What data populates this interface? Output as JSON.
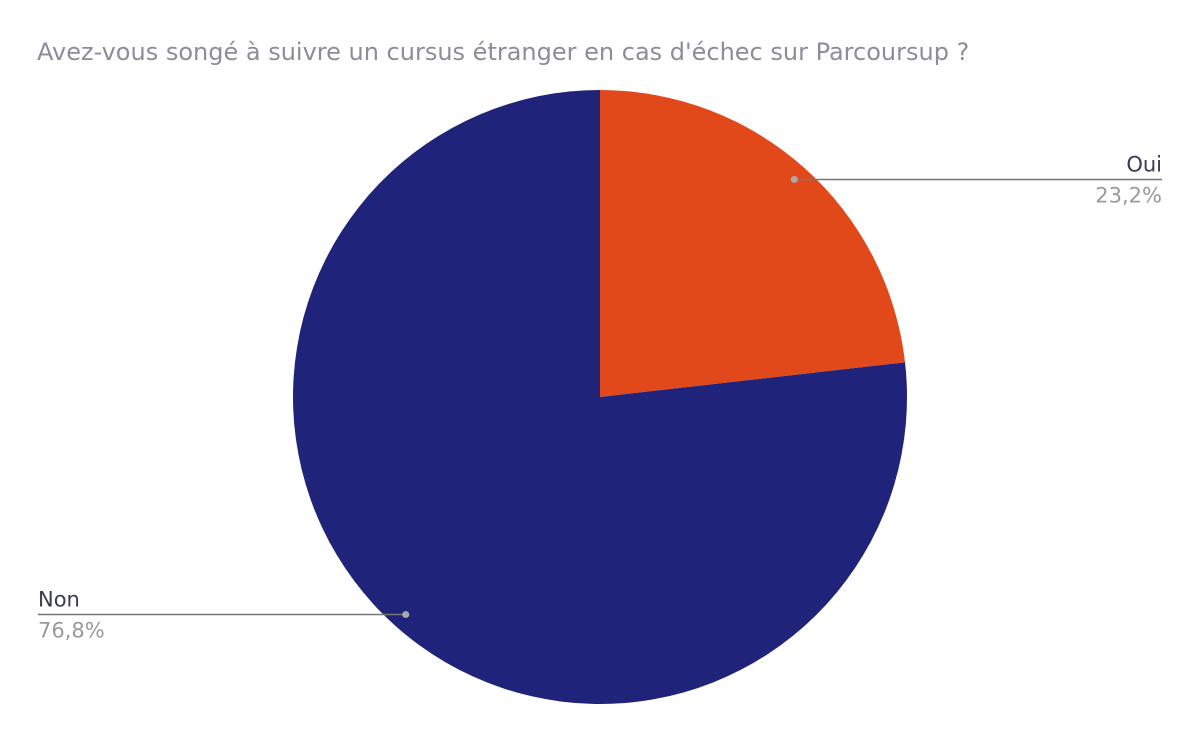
{
  "chart_data": {
    "type": "pie",
    "title": "Avez-vous songé à suivre un cursus étranger en cas d'échec sur Parcoursup ?",
    "categories": [
      "Oui",
      "Non"
    ],
    "values": [
      23.2,
      76.8
    ],
    "value_labels": [
      "23,2%",
      "76,8%"
    ],
    "colors": [
      "#e2491a",
      "#1f237a"
    ]
  }
}
